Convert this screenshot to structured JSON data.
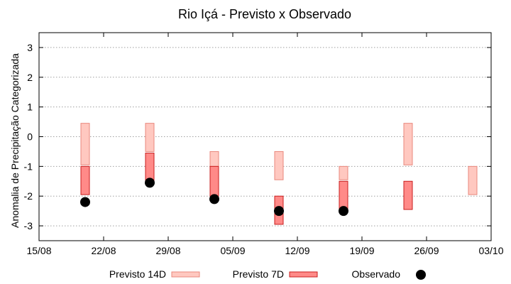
{
  "chart_data": {
    "type": "range-bar",
    "title": "Rio Içá - Previsto x Observado",
    "xlabel": "",
    "ylabel": "Anomalia de Precipitação Categorizada",
    "ylim": [
      -3.5,
      3.5
    ],
    "yticks": [
      -3,
      -2,
      -1,
      0,
      1,
      2,
      3
    ],
    "xlim_days": [
      0,
      49
    ],
    "xticks": [
      {
        "label": "15/08",
        "day": 0
      },
      {
        "label": "22/08",
        "day": 7
      },
      {
        "label": "29/08",
        "day": 14
      },
      {
        "label": "05/09",
        "day": 21
      },
      {
        "label": "12/09",
        "day": 28
      },
      {
        "label": "19/09",
        "day": 35
      },
      {
        "label": "26/09",
        "day": 42
      },
      {
        "label": "03/10",
        "day": 49
      }
    ],
    "grid": true,
    "series": [
      {
        "name": "Previsto 14D",
        "kind": "range",
        "color": "#ffc8c0",
        "stroke": "#e8877c",
        "items": [
          {
            "day": 5,
            "low": -0.95,
            "high": 0.45
          },
          {
            "day": 12,
            "low": -0.5,
            "high": 0.45
          },
          {
            "day": 19,
            "low": -1.0,
            "high": -0.5
          },
          {
            "day": 26,
            "low": -1.45,
            "high": -0.5
          },
          {
            "day": 33,
            "low": -1.45,
            "high": -1.0
          },
          {
            "day": 40,
            "low": -0.95,
            "high": 0.45
          },
          {
            "day": 47,
            "low": -1.95,
            "high": -1.0
          }
        ]
      },
      {
        "name": "Previsto 7D",
        "kind": "range",
        "color": "#ff8a88",
        "stroke": "#c81e1e",
        "items": [
          {
            "day": 5,
            "low": -1.95,
            "high": -1.0
          },
          {
            "day": 12,
            "low": -1.5,
            "high": -0.55
          },
          {
            "day": 19,
            "low": -2.0,
            "high": -1.0
          },
          {
            "day": 26,
            "low": -2.95,
            "high": -2.0
          },
          {
            "day": 33,
            "low": -2.45,
            "high": -1.5
          },
          {
            "day": 40,
            "low": -2.45,
            "high": -1.5
          }
        ]
      },
      {
        "name": "Observado",
        "kind": "point",
        "color": "#000000",
        "points": [
          {
            "day": 5,
            "value": -2.2
          },
          {
            "day": 12,
            "value": -1.55
          },
          {
            "day": 19,
            "value": -2.1
          },
          {
            "day": 26,
            "value": -2.5
          },
          {
            "day": 33,
            "value": -2.5
          }
        ]
      }
    ]
  },
  "legend": {
    "items": [
      {
        "label": "Previsto 14D"
      },
      {
        "label": "Previsto 7D"
      },
      {
        "label": "Observado"
      }
    ]
  }
}
